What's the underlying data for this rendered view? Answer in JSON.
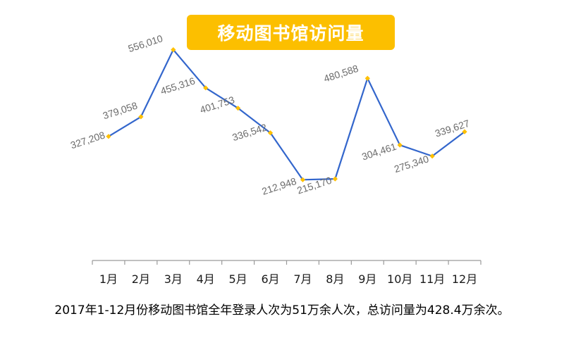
{
  "title": "移动图书馆访问量",
  "caption": "2017年1-12月份移动图书馆全年登录人次为51万余人次，总访问量为428.4万余次。",
  "colors": {
    "title_bg": "#fcbf00",
    "title_text": "#ffffff",
    "line": "#3366cc",
    "marker": "#ffc000",
    "data_label": "#6b6b6b",
    "axis": "#9a9a9a"
  },
  "chart_data": {
    "type": "line",
    "title": "移动图书馆访问量",
    "categories": [
      "1月",
      "2月",
      "3月",
      "4月",
      "5月",
      "6月",
      "7月",
      "8月",
      "9月",
      "10月",
      "11月",
      "12月"
    ],
    "series": [
      {
        "values": [
          327208,
          379058,
          556010,
          455316,
          401753,
          336542,
          212948,
          215170,
          480588,
          304461,
          275340,
          339627
        ],
        "labels": [
          "327,208",
          "379,058",
          "556,010",
          "455,316",
          "401,753",
          "336,542",
          "212,948",
          "215,170",
          "480,588",
          "304,461",
          "275,340",
          "339,627"
        ]
      }
    ],
    "grid": false,
    "legend": "none",
    "data_labels": "rotated"
  }
}
